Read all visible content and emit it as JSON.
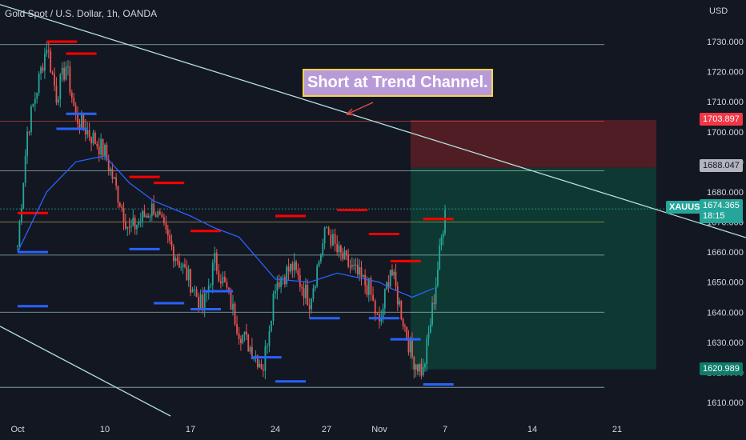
{
  "header": {
    "title": "Gold Spot / U.S. Dollar, 1h, OANDA",
    "currency": "USD"
  },
  "symbol_tag": "XAUUSD",
  "price_tag": {
    "price": "1674.365",
    "countdown": "18:15"
  },
  "position": {
    "stop": "1703.897",
    "entry": "1688.047",
    "target": "1620.989"
  },
  "annotation": "Short at Trend Channel.",
  "colors": {
    "background": "#131722",
    "bull": "#26a69a",
    "bear": "#ef5350",
    "resistance": "#ff0000",
    "support": "#2962ff",
    "ma": "#2962ff",
    "trendline": "#b2dfdb",
    "stop_zone": "#5c1e24",
    "target_zone": "#0d3b34"
  },
  "chart_data": {
    "type": "candlestick",
    "title": "Gold Spot / U.S. Dollar, 1h, OANDA",
    "ylim": [
      1603,
      1738
    ],
    "yticks": [
      "1730.000",
      "1720.000",
      "1710.000",
      "1700.000",
      "1690.000",
      "1680.000",
      "1670.000",
      "1660.000",
      "1650.000",
      "1640.000",
      "1630.000",
      "1620.000",
      "1610.000"
    ],
    "xticks": [
      "Oct",
      "10",
      "17",
      "24",
      "27",
      "Nov",
      "7",
      "14",
      "21"
    ],
    "close_path": [
      [
        "Oct",
        1662
      ],
      [
        "Oct 2",
        1700
      ],
      [
        "Oct 4",
        1729
      ],
      [
        "Oct 5",
        1712
      ],
      [
        "Oct 6",
        1722
      ],
      [
        "Oct 7",
        1705
      ],
      [
        "Oct 10",
        1693
      ],
      [
        "Oct 12",
        1667
      ],
      [
        "Oct 14",
        1675
      ],
      [
        "Oct 15",
        1665
      ],
      [
        "Oct 17",
        1650
      ],
      [
        "Oct 18",
        1641
      ],
      [
        "Oct 19",
        1657
      ],
      [
        "Oct 20",
        1647
      ],
      [
        "Oct 21",
        1634
      ],
      [
        "Oct 23",
        1622
      ],
      [
        "Oct 24",
        1650
      ],
      [
        "Oct 25",
        1655
      ],
      [
        "Oct 26",
        1644
      ],
      [
        "Oct 27",
        1668
      ],
      [
        "Oct 28",
        1660
      ],
      [
        "Oct 31",
        1648
      ],
      [
        "Nov 1",
        1635
      ],
      [
        "Nov 2",
        1655
      ],
      [
        "Nov 3",
        1640
      ],
      [
        "Nov 4",
        1625
      ],
      [
        "Nov 5",
        1620
      ],
      [
        "Nov 6",
        1645
      ],
      [
        "Nov 7",
        1674
      ]
    ],
    "ma": [
      [
        "Oct",
        1660
      ],
      [
        "Oct 4",
        1680
      ],
      [
        "Oct 7",
        1690
      ],
      [
        "Oct 10",
        1692
      ],
      [
        "Oct 12",
        1683
      ],
      [
        "Oct 14",
        1677
      ],
      [
        "Oct 17",
        1672
      ],
      [
        "Oct 19",
        1668
      ],
      [
        "Oct 21",
        1665
      ],
      [
        "Oct 24",
        1651
      ],
      [
        "Oct 26",
        1650
      ],
      [
        "Oct 28",
        1653
      ],
      [
        "Nov 1",
        1650
      ],
      [
        "Nov 2",
        1648
      ],
      [
        "Nov 4",
        1645
      ],
      [
        "Nov 6",
        1648
      ]
    ],
    "horizontal_levels": [
      1729,
      1703.5,
      1687,
      1670,
      1659,
      1640,
      1615
    ],
    "trendlines": [
      {
        "from": [
          "Oct",
          1737
        ],
        "to": [
          "Nov 21",
          1666
        ]
      },
      {
        "from": [
          "Oct",
          1630
        ],
        "to": [
          "Oct 20",
          1603
        ]
      }
    ],
    "resistance_segments": [
      [
        "Oct 4",
        1730
      ],
      [
        "Oct 6",
        1726
      ],
      [
        "Oct 1",
        1673
      ],
      [
        "Oct 12",
        1685
      ],
      [
        "Oct 14",
        1683
      ],
      [
        "Oct 17",
        1667
      ],
      [
        "Oct 24",
        1672
      ],
      [
        "Oct 28",
        1674
      ],
      [
        "Oct 31",
        1666
      ],
      [
        "Nov 2",
        1657
      ],
      [
        "Nov 5",
        1671
      ]
    ],
    "support_segments": [
      [
        "Oct",
        1642
      ],
      [
        "Oct 1",
        1660
      ],
      [
        "Oct 5",
        1701
      ],
      [
        "Oct 6",
        1706
      ],
      [
        "Oct 12",
        1661
      ],
      [
        "Oct 14",
        1643
      ],
      [
        "Oct 17",
        1641
      ],
      [
        "Oct 18",
        1647
      ],
      [
        "Oct 22",
        1625
      ],
      [
        "Oct 24",
        1617
      ],
      [
        "Oct 26",
        1638
      ],
      [
        "Oct 31",
        1638
      ],
      [
        "Nov 2",
        1631
      ],
      [
        "Nov 5",
        1616
      ]
    ],
    "short_position": {
      "entry": 1688.047,
      "stop": 1703.897,
      "target": 1620.989
    },
    "last_price": 1674.365
  }
}
